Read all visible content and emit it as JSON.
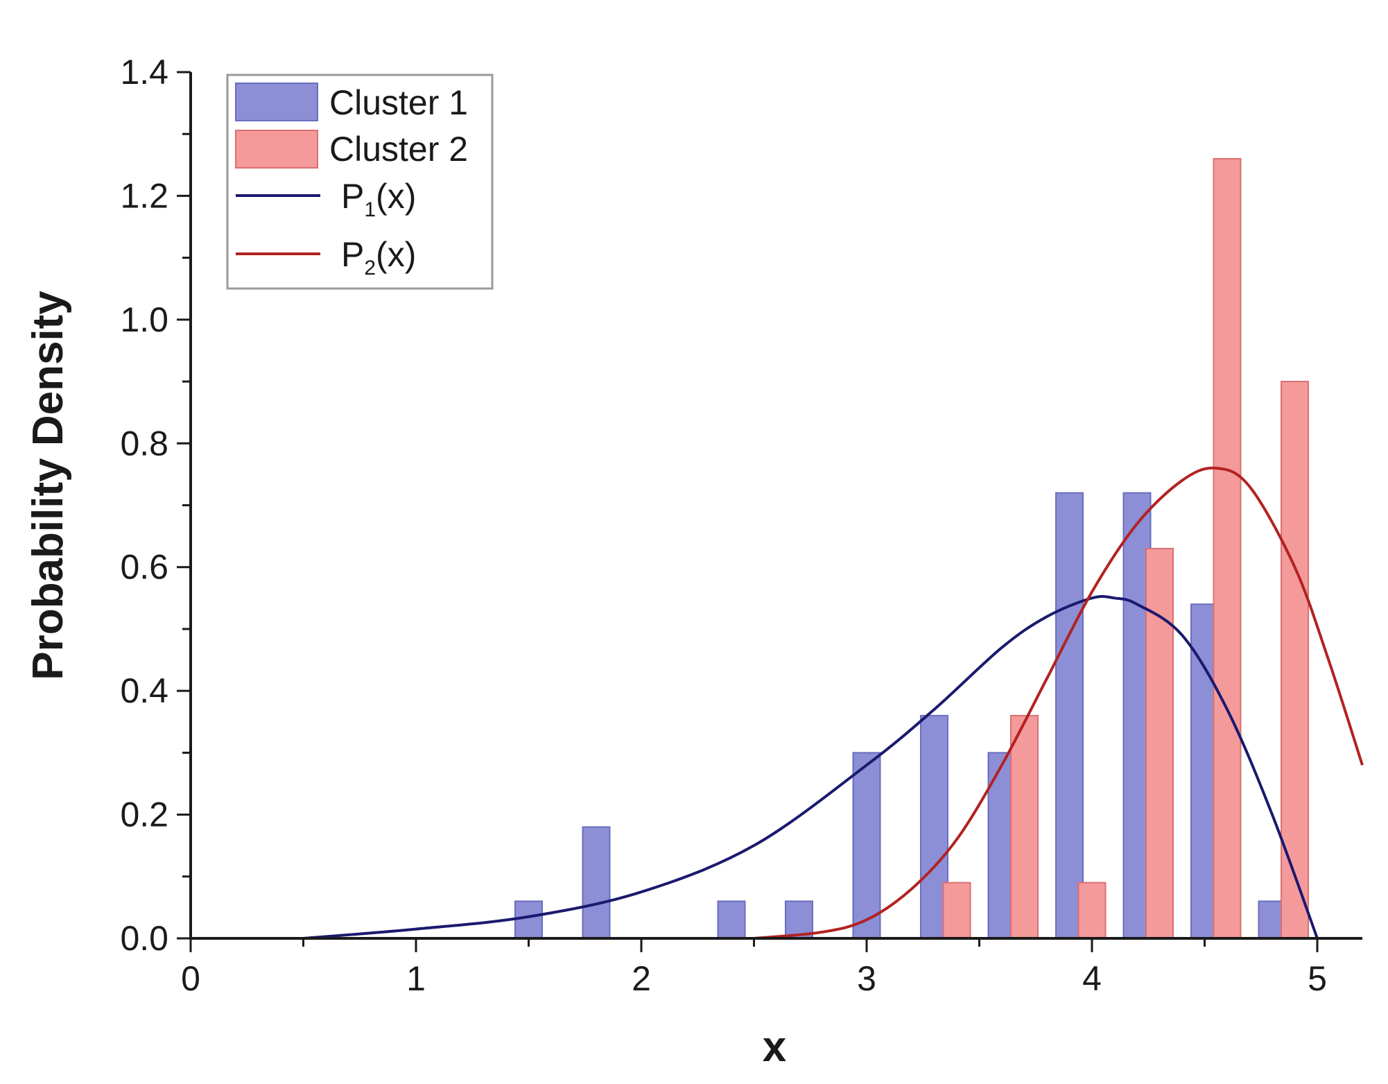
{
  "chart_data": {
    "type": "bar",
    "xlabel": "x",
    "ylabel": "Probability Density",
    "xlim": [
      0,
      5.2
    ],
    "ylim": [
      0,
      1.4
    ],
    "x_ticks": [
      0,
      1,
      2,
      3,
      4,
      5
    ],
    "y_ticks": [
      0.0,
      0.2,
      0.4,
      0.6,
      0.8,
      1.0,
      1.2,
      1.4
    ],
    "bin_width": 0.12,
    "grid": false,
    "legend_position": "top-left",
    "series": [
      {
        "name": "Cluster 1",
        "kind": "histogram",
        "color": "#8c8fd6",
        "edge": "#6a6dbf",
        "x": [
          1.5,
          1.8,
          2.4,
          2.7,
          3.0,
          3.3,
          3.6,
          3.9,
          4.2,
          4.5,
          4.8
        ],
        "values": [
          0.06,
          0.18,
          0.06,
          0.06,
          0.3,
          0.36,
          0.3,
          0.72,
          0.72,
          0.54,
          0.06
        ]
      },
      {
        "name": "Cluster 2",
        "kind": "histogram",
        "color": "#f59a9a",
        "edge": "#d97070",
        "x": [
          3.4,
          3.7,
          4.0,
          4.3,
          4.6,
          4.9
        ],
        "values": [
          0.09,
          0.36,
          0.09,
          0.63,
          1.26,
          0.9
        ]
      },
      {
        "name": "P",
        "name_sub": "1",
        "name_suffix": "(x)",
        "kind": "line",
        "color": "#1a1a6e",
        "x": [
          0.5,
          1.0,
          1.5,
          2.0,
          2.5,
          3.0,
          3.3,
          3.6,
          3.8,
          4.0,
          4.1,
          4.2,
          4.4,
          4.6,
          4.8,
          5.0
        ],
        "values": [
          0.0,
          0.015,
          0.035,
          0.075,
          0.15,
          0.28,
          0.37,
          0.47,
          0.52,
          0.55,
          0.55,
          0.54,
          0.49,
          0.37,
          0.2,
          0.0
        ]
      },
      {
        "name": "P",
        "name_sub": "2",
        "name_suffix": "(x)",
        "kind": "line",
        "color": "#b22222",
        "x": [
          2.5,
          2.8,
          3.0,
          3.2,
          3.4,
          3.6,
          3.8,
          4.0,
          4.2,
          4.4,
          4.55,
          4.7,
          4.9,
          5.05,
          5.2
        ],
        "values": [
          0.0,
          0.01,
          0.03,
          0.08,
          0.16,
          0.28,
          0.42,
          0.56,
          0.67,
          0.74,
          0.76,
          0.73,
          0.6,
          0.45,
          0.28
        ]
      }
    ]
  }
}
